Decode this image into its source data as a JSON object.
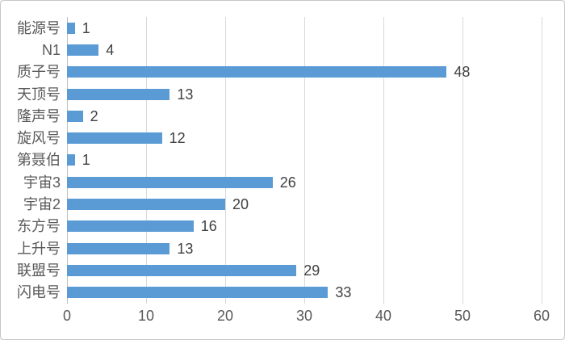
{
  "chart_data": {
    "type": "bar",
    "orientation": "horizontal",
    "title": "",
    "xlabel": "",
    "ylabel": "",
    "categories": [
      "能源号",
      "N1",
      "质子号",
      "天顶号",
      "隆声号",
      "旋风号",
      "第聂伯",
      "宇宙3",
      "宇宙2",
      "东方号",
      "上升号",
      "联盟号",
      "闪电号"
    ],
    "values": [
      1,
      4,
      48,
      13,
      2,
      12,
      1,
      26,
      20,
      16,
      13,
      29,
      33
    ],
    "xlim": [
      0,
      60
    ],
    "xticks": [
      0,
      10,
      20,
      30,
      40,
      50,
      60
    ],
    "grid": true,
    "legend": false,
    "data_labels": true
  },
  "colors": {
    "bar": "#5b9bd5",
    "gridline": "#d9d9d9",
    "axis_line": "#bfbfbf",
    "category_text": "#595959",
    "value_text": "#404040",
    "tick_text": "#595959",
    "frame_border": "#c6c6c6",
    "background": "#ffffff"
  }
}
